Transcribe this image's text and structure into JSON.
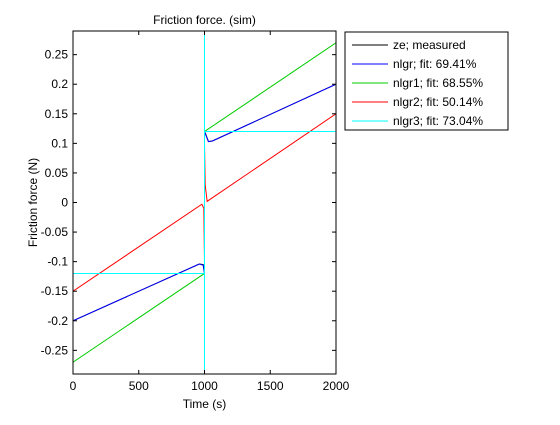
{
  "chart_data": {
    "type": "line",
    "title": "Friction force. (sim)",
    "xlabel": "Time (s)",
    "ylabel": "Friction force (N)",
    "xlim": [
      0,
      2000
    ],
    "ylim": [
      -0.29,
      0.29
    ],
    "grid": false,
    "legend_position": "outside-top-right",
    "xticks": [
      0,
      500,
      1000,
      1500,
      2000
    ],
    "xtick_labels": [
      "0",
      "500",
      "1000",
      "1500",
      "2000"
    ],
    "yticks": [
      -0.25,
      -0.2,
      -0.15,
      -0.1,
      -0.05,
      0,
      0.05,
      0.1,
      0.15,
      0.2,
      0.25
    ],
    "ytick_labels": [
      "-0.25",
      "-0.2",
      "-0.15",
      "-0.1",
      "-0.05",
      "0",
      "0.05",
      "0.1",
      "0.15",
      "0.2",
      "0.25"
    ],
    "series": [
      {
        "name": "ze; measured",
        "color": "#000000",
        "x": [
          0,
          960,
          990,
          1000,
          1000,
          1010,
          1030,
          1060,
          2000
        ],
        "y": [
          -0.2,
          -0.104,
          -0.105,
          -0.12,
          0.12,
          0.115,
          0.103,
          0.104,
          0.2
        ]
      },
      {
        "name": "nlgr; fit: 69.41%",
        "color": "#0000ff",
        "x": [
          0,
          960,
          990,
          1000,
          1000,
          1010,
          1030,
          1060,
          2000
        ],
        "y": [
          -0.2,
          -0.104,
          -0.106,
          -0.12,
          0.12,
          0.114,
          0.103,
          0.104,
          0.2
        ]
      },
      {
        "name": "nlgr1; fit: 68.55%",
        "color": "#00cc00",
        "x": [
          0,
          1000,
          1000,
          2000
        ],
        "y": [
          -0.27,
          -0.12,
          0.12,
          0.27
        ]
      },
      {
        "name": "nlgr2; fit: 50.14%",
        "color": "#ff0000",
        "x": [
          0,
          980,
          995,
          1000,
          1000,
          1005,
          1020,
          2000
        ],
        "y": [
          -0.15,
          -0.003,
          -0.01,
          -0.1,
          0.1,
          0.03,
          0.002,
          0.15
        ]
      },
      {
        "name": "nlgr3; fit: 73.04%",
        "color": "#00ffff",
        "x": [
          0,
          1000,
          1000,
          1000,
          1000,
          2000
        ],
        "y": [
          -0.12,
          -0.12,
          -0.3,
          0.3,
          0.12,
          0.12
        ]
      }
    ]
  }
}
